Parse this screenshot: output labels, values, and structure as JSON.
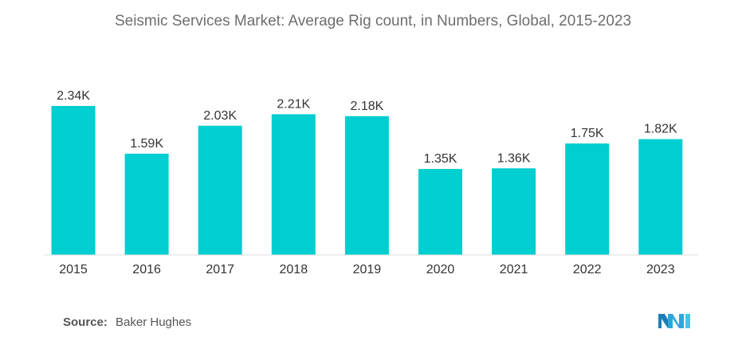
{
  "title": "Seismic Services Market: Average Rig count, in Numbers, Global, 2015-2023",
  "source": {
    "label": "Source:",
    "text": "Baker Hughes"
  },
  "colors": {
    "bar": "#00ced1",
    "text": "#333333",
    "axis": "#dddddd",
    "title": "#6e6e6e",
    "logo": "#2aa8d8"
  },
  "chart_data": {
    "type": "bar",
    "title": "Seismic Services Market: Average Rig count, in Numbers, Global, 2015-2023",
    "categories": [
      "2015",
      "2016",
      "2017",
      "2018",
      "2019",
      "2020",
      "2021",
      "2022",
      "2023"
    ],
    "values": [
      2340,
      1590,
      2030,
      2210,
      2180,
      1350,
      1360,
      1750,
      1820
    ],
    "labels": [
      "2.34K",
      "1.59K",
      "2.03K",
      "2.21K",
      "2.18K",
      "1.35K",
      "1.36K",
      "1.75K",
      "1.82K"
    ],
    "xlabel": "",
    "ylabel": "",
    "ylim": [
      0,
      2340
    ],
    "grid": false,
    "legend": "none"
  }
}
